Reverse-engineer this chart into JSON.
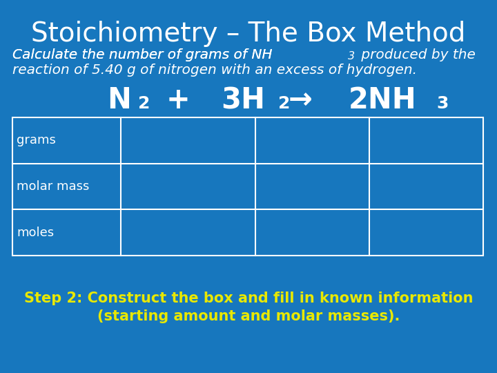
{
  "title": "Stoichiometry – The Box Method",
  "subtitle_line1": "Calculate the number of grams of NH",
  "subtitle_nh3_sub": "3",
  "subtitle_suffix1": " produced by the",
  "subtitle_line2": "reaction of 5.40 g of nitrogen with an excess of hydrogen.",
  "row_labels": [
    "grams",
    "molar mass",
    "moles"
  ],
  "bg_color": "#1777be",
  "table_border": "#ffffff",
  "text_color": "#ffffff",
  "step_color": "#e8e800",
  "step_text_line1": "Step 2: Construct the box and fill in known information",
  "step_text_line2": "(starting amount and molar masses).",
  "title_fontsize": 28,
  "subtitle_fontsize": 14.5,
  "equation_fontsize": 30,
  "eq_sub_fontsize": 18,
  "row_label_fontsize": 13,
  "step_fontsize": 15
}
